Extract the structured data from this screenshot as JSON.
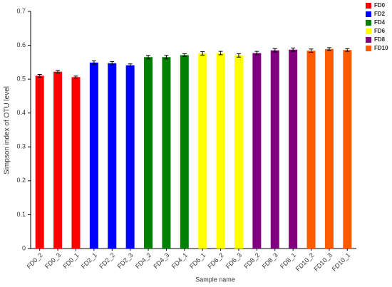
{
  "chart_data": {
    "type": "bar",
    "x_label": "Sample name",
    "y_label": "Simpson index of OTU level",
    "categories": [
      "FD0_2",
      "FD0_3",
      "FD0_1",
      "FD2_1",
      "FD2_2",
      "FD2_3",
      "FD4_2",
      "FD4_3",
      "FD4_1",
      "FD6_1",
      "FD6_2",
      "FD6_3",
      "FD8_2",
      "FD8_3",
      "FD8_1",
      "FD10_2",
      "FD10_3",
      "FD10_1"
    ],
    "series": [
      {
        "name": "FD0",
        "color": "#ff0000",
        "values": [
          0.51,
          0.522,
          0.506,
          null,
          null,
          null,
          null,
          null,
          null,
          null,
          null,
          null,
          null,
          null,
          null,
          null,
          null,
          null
        ],
        "errors": [
          0.004,
          0.004,
          0.003,
          null,
          null,
          null,
          null,
          null,
          null,
          null,
          null,
          null,
          null,
          null,
          null,
          null,
          null,
          null
        ]
      },
      {
        "name": "FD2",
        "color": "#0000ff",
        "values": [
          null,
          null,
          null,
          0.549,
          0.547,
          0.541,
          null,
          null,
          null,
          null,
          null,
          null,
          null,
          null,
          null,
          null,
          null,
          null
        ],
        "errors": [
          null,
          null,
          null,
          0.005,
          0.005,
          0.004,
          null,
          null,
          null,
          null,
          null,
          null,
          null,
          null,
          null,
          null,
          null,
          null
        ]
      },
      {
        "name": "FD4",
        "color": "#008000",
        "values": [
          null,
          null,
          null,
          null,
          null,
          null,
          0.565,
          0.565,
          0.571,
          null,
          null,
          null,
          null,
          null,
          null,
          null,
          null,
          null
        ],
        "errors": [
          null,
          null,
          null,
          null,
          null,
          null,
          0.005,
          0.005,
          0.004,
          null,
          null,
          null,
          null,
          null,
          null,
          null,
          null,
          null
        ]
      },
      {
        "name": "FD6",
        "color": "#ffff00",
        "values": [
          null,
          null,
          null,
          null,
          null,
          null,
          null,
          null,
          null,
          0.576,
          0.577,
          0.57,
          null,
          null,
          null,
          null,
          null,
          null
        ],
        "errors": [
          null,
          null,
          null,
          null,
          null,
          null,
          null,
          null,
          null,
          0.005,
          0.005,
          0.005,
          null,
          null,
          null,
          null,
          null,
          null
        ]
      },
      {
        "name": "FD8",
        "color": "#800080",
        "values": [
          null,
          null,
          null,
          null,
          null,
          null,
          null,
          null,
          null,
          null,
          null,
          null,
          0.577,
          0.585,
          0.587,
          null,
          null,
          null
        ],
        "errors": [
          null,
          null,
          null,
          null,
          null,
          null,
          null,
          null,
          null,
          null,
          null,
          null,
          0.005,
          0.005,
          0.005,
          null,
          null,
          null
        ]
      },
      {
        "name": "FD10",
        "color": "#ff5a00",
        "values": [
          null,
          null,
          null,
          null,
          null,
          null,
          null,
          null,
          null,
          null,
          null,
          null,
          null,
          null,
          null,
          0.584,
          0.589,
          0.586
        ],
        "errors": [
          null,
          null,
          null,
          null,
          null,
          null,
          null,
          null,
          null,
          null,
          null,
          null,
          null,
          null,
          null,
          0.005,
          0.004,
          0.004
        ]
      }
    ],
    "ylim": [
      0,
      0.7
    ],
    "yticks": [
      0,
      0.1,
      0.2,
      0.3,
      0.4,
      0.5,
      0.6,
      0.7
    ]
  }
}
